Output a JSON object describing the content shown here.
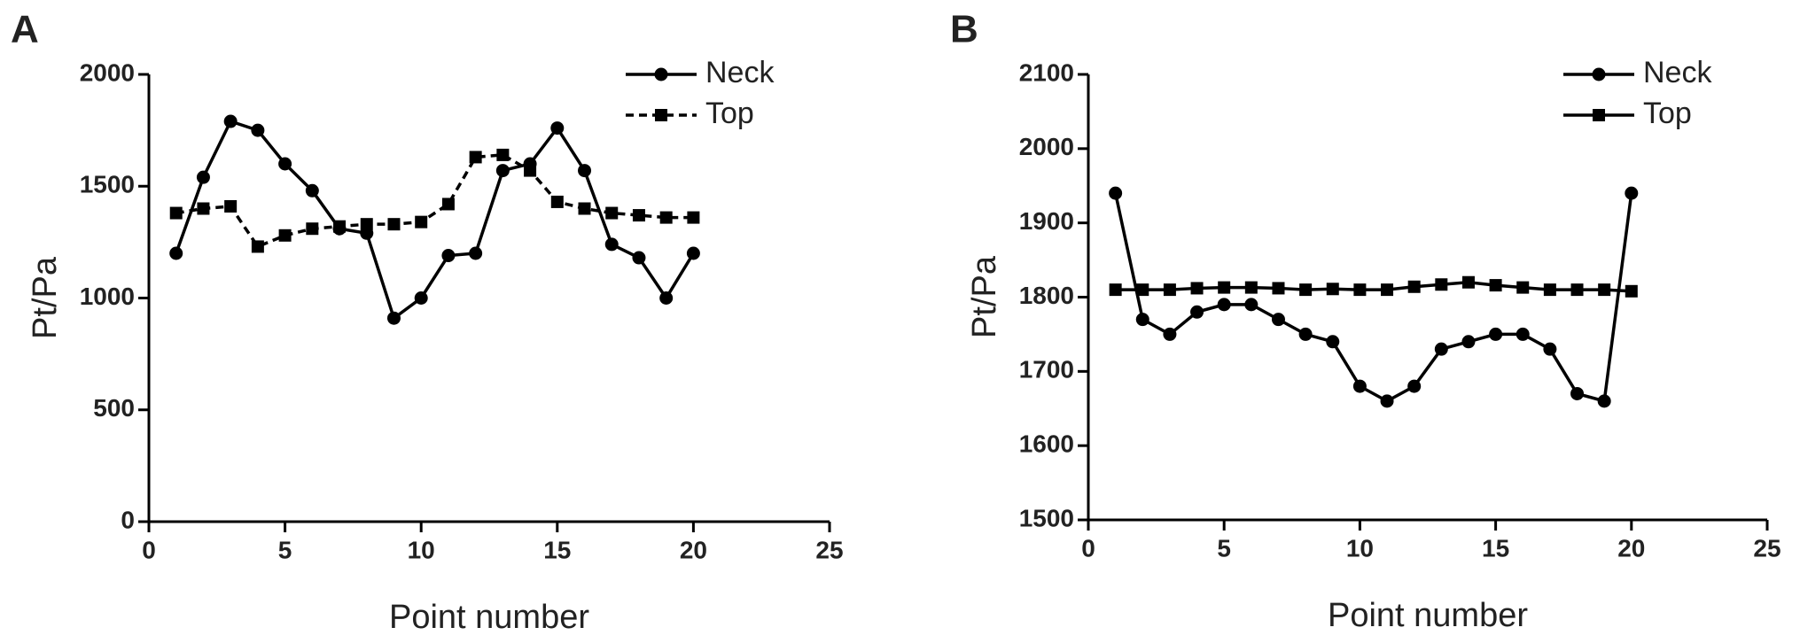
{
  "chart_data": [
    {
      "type": "line",
      "panel_label": "A",
      "xlabel": "Point number",
      "ylabel": "Pt/Pa",
      "x": [
        1,
        2,
        3,
        4,
        5,
        6,
        7,
        8,
        9,
        10,
        11,
        12,
        13,
        14,
        15,
        16,
        17,
        18,
        19,
        20
      ],
      "series": [
        {
          "name": "Neck",
          "color": "#000000",
          "marker": "circle",
          "dash": false,
          "values": [
            1200,
            1540,
            1790,
            1750,
            1600,
            1480,
            1310,
            1290,
            910,
            1000,
            1190,
            1200,
            1570,
            1600,
            1760,
            1570,
            1240,
            1180,
            1000,
            1200
          ]
        },
        {
          "name": "Top",
          "color": "#000000",
          "marker": "square",
          "dash": true,
          "values": [
            1380,
            1400,
            1410,
            1230,
            1280,
            1310,
            1320,
            1330,
            1330,
            1340,
            1420,
            1630,
            1640,
            1570,
            1430,
            1400,
            1380,
            1370,
            1360,
            1360
          ]
        }
      ],
      "xlim": [
        0,
        25
      ],
      "xticks": [
        0,
        5,
        10,
        15,
        20,
        25
      ],
      "ylim": [
        0,
        2000
      ],
      "yticks": [
        0,
        500,
        1000,
        1500,
        2000
      ],
      "legend": "upper right"
    },
    {
      "type": "line",
      "panel_label": "B",
      "xlabel": "Point number",
      "ylabel": "Pt/Pa",
      "x": [
        1,
        2,
        3,
        4,
        5,
        6,
        7,
        8,
        9,
        10,
        11,
        12,
        13,
        14,
        15,
        16,
        17,
        18,
        19,
        20
      ],
      "series": [
        {
          "name": "Neck",
          "color": "#000000",
          "marker": "circle",
          "dash": false,
          "values": [
            1940,
            1770,
            1750,
            1780,
            1790,
            1790,
            1770,
            1750,
            1740,
            1680,
            1660,
            1680,
            1730,
            1740,
            1750,
            1750,
            1730,
            1670,
            1660,
            1940
          ]
        },
        {
          "name": "Top",
          "color": "#000000",
          "marker": "square",
          "dash": false,
          "values": [
            1810,
            1810,
            1810,
            1812,
            1813,
            1813,
            1812,
            1810,
            1811,
            1810,
            1810,
            1814,
            1817,
            1820,
            1816,
            1813,
            1810,
            1810,
            1810,
            1808
          ]
        }
      ],
      "xlim": [
        0,
        25
      ],
      "xticks": [
        0,
        5,
        10,
        15,
        20,
        25
      ],
      "ylim": [
        1500,
        2100
      ],
      "yticks": [
        1500,
        1600,
        1700,
        1800,
        1900,
        2000,
        2100
      ],
      "legend": "upper right"
    }
  ]
}
